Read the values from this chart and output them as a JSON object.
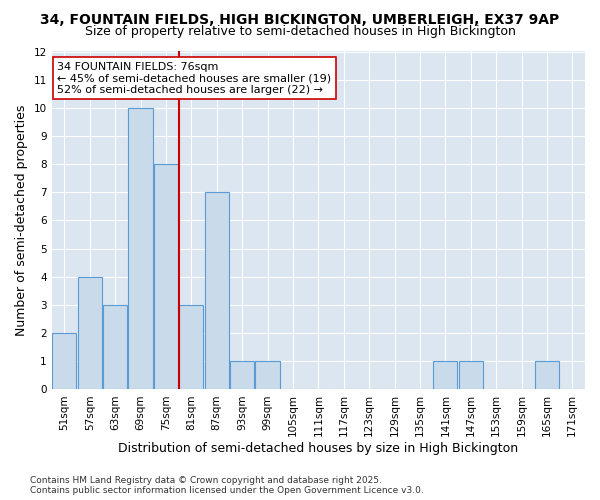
{
  "title": "34, FOUNTAIN FIELDS, HIGH BICKINGTON, UMBERLEIGH, EX37 9AP",
  "subtitle": "Size of property relative to semi-detached houses in High Bickington",
  "xlabel": "Distribution of semi-detached houses by size in High Bickington",
  "ylabel": "Number of semi-detached properties",
  "categories": [
    "51sqm",
    "57sqm",
    "63sqm",
    "69sqm",
    "75sqm",
    "81sqm",
    "87sqm",
    "93sqm",
    "99sqm",
    "105sqm",
    "111sqm",
    "117sqm",
    "123sqm",
    "129sqm",
    "135sqm",
    "141sqm",
    "147sqm",
    "153sqm",
    "159sqm",
    "165sqm",
    "171sqm"
  ],
  "values": [
    2,
    4,
    3,
    10,
    8,
    3,
    7,
    1,
    1,
    0,
    0,
    0,
    0,
    0,
    0,
    1,
    1,
    0,
    0,
    1,
    0
  ],
  "bar_color": "#c9daea",
  "bar_edge_color": "#5b9bd5",
  "highlight_index": 4,
  "highlight_line_color": "#cc0000",
  "annotation_line1": "34 FOUNTAIN FIELDS: 76sqm",
  "annotation_line2": "← 45% of semi-detached houses are smaller (19)",
  "annotation_line3": "52% of semi-detached houses are larger (22) →",
  "annotation_box_color": "#ffffff",
  "annotation_box_edge_color": "#cc0000",
  "ylim": [
    0,
    12
  ],
  "yticks": [
    0,
    1,
    2,
    3,
    4,
    5,
    6,
    7,
    8,
    9,
    10,
    11,
    12
  ],
  "footer": "Contains HM Land Registry data © Crown copyright and database right 2025.\nContains public sector information licensed under the Open Government Licence v3.0.",
  "background_color": "#ffffff",
  "plot_bg_color": "#dce6f1",
  "grid_color": "#ffffff",
  "title_fontsize": 10,
  "subtitle_fontsize": 9,
  "axis_label_fontsize": 9,
  "tick_fontsize": 7.5,
  "annotation_fontsize": 8,
  "footer_fontsize": 6.5
}
